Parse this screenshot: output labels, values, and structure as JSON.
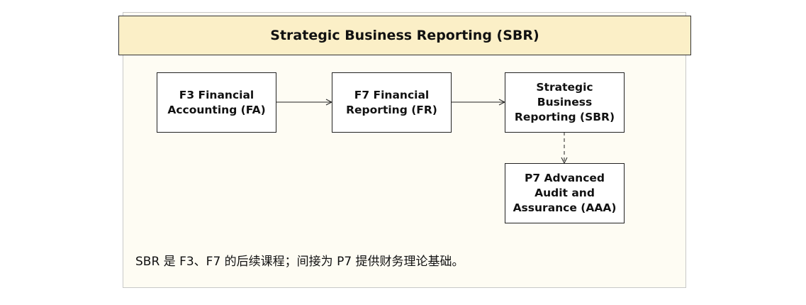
{
  "header": {
    "title": "Strategic Business Reporting (SBR)"
  },
  "nodes": {
    "f3": "F3 Financial Accounting (FA)",
    "f7": "F7 Financial Reporting (FR)",
    "sbr": "Strategic Business Reporting (SBR)",
    "p7": "P7 Advanced Audit and Assurance (AAA)"
  },
  "edges": [
    {
      "from": "f3",
      "to": "f7",
      "style": "solid"
    },
    {
      "from": "f7",
      "to": "sbr",
      "style": "solid"
    },
    {
      "from": "sbr",
      "to": "p7",
      "style": "dashed"
    }
  ],
  "note": "SBR 是 F3、F7 的后续课程；间接为 P7 提供财务理论基础。",
  "colors": {
    "header_fill": "#fbefc7",
    "panel_fill": "#fefcf3",
    "node_fill": "#ffffff",
    "border": "#222222"
  }
}
